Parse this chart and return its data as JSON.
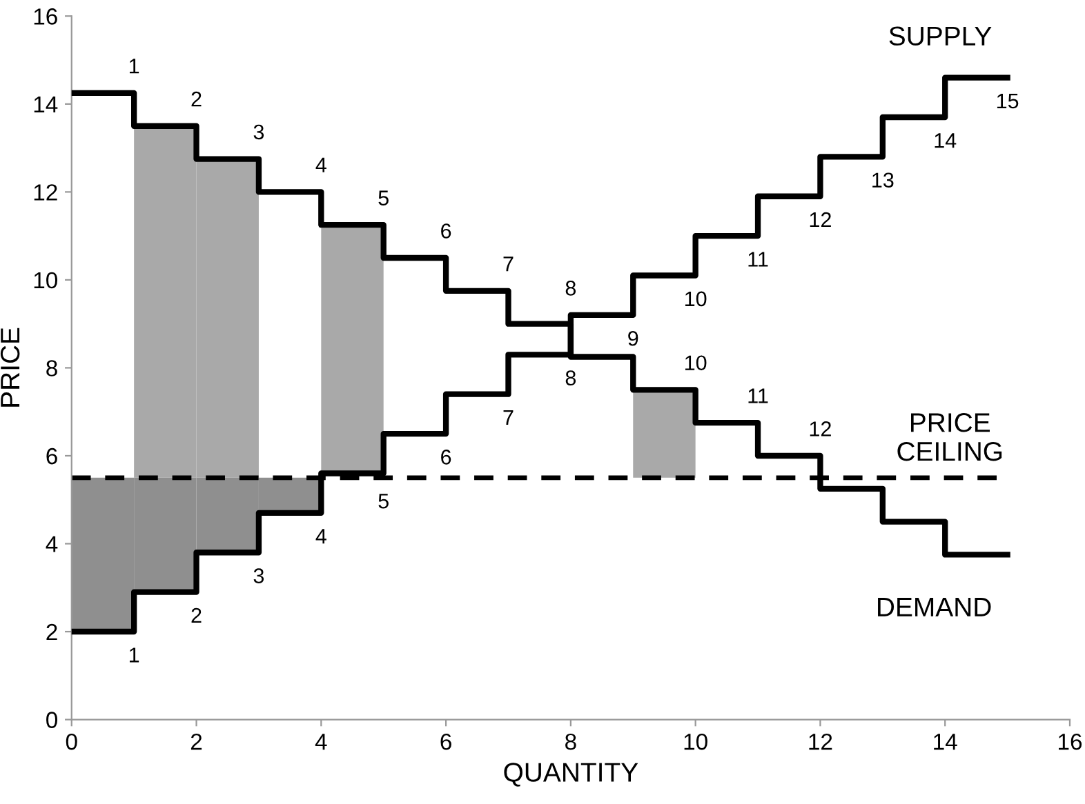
{
  "chart_data": {
    "type": "step",
    "xlabel": "QUANTITY",
    "ylabel": "PRICE",
    "xlim": [
      0,
      16
    ],
    "xticks": [
      0,
      2,
      4,
      6,
      8,
      10,
      12,
      14,
      16
    ],
    "ylim": [
      0,
      16
    ],
    "yticks": [
      0,
      2,
      4,
      6,
      8,
      10,
      12,
      14,
      16
    ],
    "grid": false,
    "legend": false,
    "line_style": "solid",
    "marker": "none",
    "series": [
      {
        "type": "bar",
        "color": "#a9a9a9",
        "x": [
          1.5,
          2.5,
          4.5,
          9.5
        ],
        "base": [
          5.5,
          5.5,
          5.6,
          5.5
        ],
        "values": [
          8,
          7.25,
          5.6,
          2
        ]
      },
      {
        "type": "bar",
        "color": "#8f8f8f",
        "x": [
          0.5,
          1.5,
          2.5,
          3.5
        ],
        "base": [
          2,
          2.9,
          3.8,
          4.7
        ],
        "values": [
          3.5,
          2.6,
          1.7,
          0.8
        ]
      },
      {
        "name": "DEMAND",
        "color": "#000000",
        "x": [
          0,
          1,
          2,
          3,
          4,
          5,
          6,
          7,
          8,
          9,
          10,
          11,
          12,
          13,
          14,
          15
        ],
        "values": [
          14.25,
          13.5,
          12.75,
          12,
          11.25,
          10.5,
          9.75,
          9,
          8.25,
          7.5,
          6.75,
          6,
          5.25,
          4.5,
          3.75,
          3.75
        ]
      },
      {
        "name": "SUPPLY",
        "color": "#000000",
        "x": [
          0,
          1,
          2,
          3,
          4,
          5,
          6,
          7,
          8,
          9,
          10,
          11,
          12,
          13,
          14,
          15
        ],
        "values": [
          2,
          2.9,
          3.8,
          4.7,
          5.6,
          6.5,
          7.4,
          8.3,
          9.2,
          10.1,
          11,
          11.9,
          12.8,
          13.7,
          14.6,
          14.6
        ]
      }
    ],
    "ref_lines": [
      {
        "axis": "y",
        "value": 5.5,
        "label": "PRICE\nCEILING",
        "color": "#000000",
        "line_style": "dashed"
      }
    ],
    "annotations": [
      {
        "text": "1",
        "x": 1,
        "y": 14.25
      },
      {
        "text": "2",
        "x": 2,
        "y": 13.5
      },
      {
        "text": "3",
        "x": 3,
        "y": 12.75
      },
      {
        "text": "4",
        "x": 4,
        "y": 12
      },
      {
        "text": "5",
        "x": 5,
        "y": 11.25
      },
      {
        "text": "6",
        "x": 6,
        "y": 10.5
      },
      {
        "text": "7",
        "x": 7,
        "y": 9.75
      },
      {
        "text": "8",
        "x": 8,
        "y": 9.2
      },
      {
        "text": "10",
        "x": 10,
        "y": 7.5
      },
      {
        "text": "11",
        "x": 11,
        "y": 6.75
      },
      {
        "text": "12",
        "x": 12,
        "y": 6
      },
      {
        "text": "1",
        "x": 1,
        "y": 2
      },
      {
        "text": "2",
        "x": 2,
        "y": 2.9
      },
      {
        "text": "3",
        "x": 3,
        "y": 3.8
      },
      {
        "text": "4",
        "x": 4,
        "y": 4.7
      },
      {
        "text": "5",
        "x": 5,
        "y": 5.5
      },
      {
        "text": "6",
        "x": 6,
        "y": 6.5
      },
      {
        "text": "7",
        "x": 7,
        "y": 7.4
      },
      {
        "text": "8",
        "x": 8,
        "y": 8.3
      },
      {
        "text": "9",
        "x": 9,
        "y": 9.2
      },
      {
        "text": "10",
        "x": 10,
        "y": 10.1
      },
      {
        "text": "11",
        "x": 11,
        "y": 11
      },
      {
        "text": "12",
        "x": 12,
        "y": 11.9
      },
      {
        "text": "13",
        "x": 13,
        "y": 12.8
      },
      {
        "text": "14",
        "x": 14,
        "y": 13.7
      },
      {
        "text": "15",
        "x": 15,
        "y": 14.6
      }
    ]
  }
}
